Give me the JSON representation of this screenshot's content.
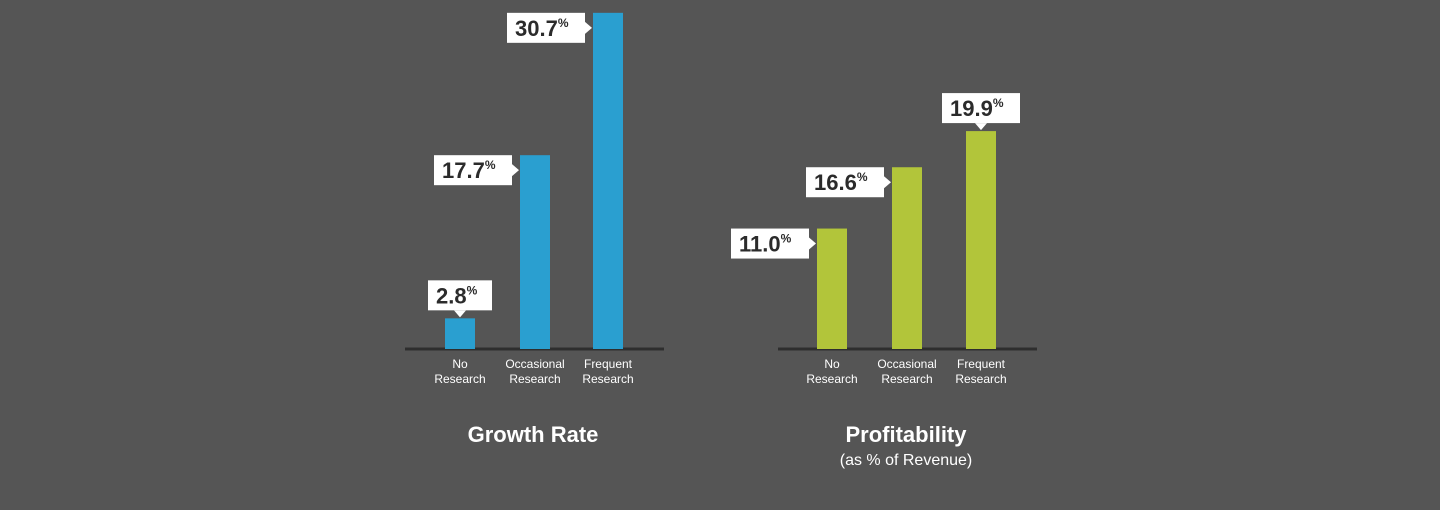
{
  "chart_data": [
    {
      "type": "bar",
      "title": "Growth Rate",
      "subtitle": "",
      "categories": [
        [
          "No",
          "Research"
        ],
        [
          "Occasional",
          "Research"
        ],
        [
          "Frequent",
          "Research"
        ]
      ],
      "values": [
        2.8,
        17.7,
        30.7
      ],
      "labels": [
        "2.8",
        "17.7",
        "30.7"
      ],
      "unit": "%",
      "color": "#2a9fd0",
      "ylim": [
        0,
        32
      ]
    },
    {
      "type": "bar",
      "title": "Profitability",
      "subtitle": "(as % of Revenue)",
      "categories": [
        [
          "No",
          "Research"
        ],
        [
          "Occasional",
          "Research"
        ],
        [
          "Frequent",
          "Research"
        ]
      ],
      "values": [
        11.0,
        16.6,
        19.9
      ],
      "labels": [
        "11.0",
        "16.6",
        "19.9"
      ],
      "unit": "%",
      "color": "#b2c53a",
      "ylim": [
        0,
        32
      ]
    }
  ],
  "style": {
    "background": "#555555",
    "axis_color": "#2e2e2e",
    "callout_fill": "#ffffff",
    "text_color": "#ffffff"
  }
}
